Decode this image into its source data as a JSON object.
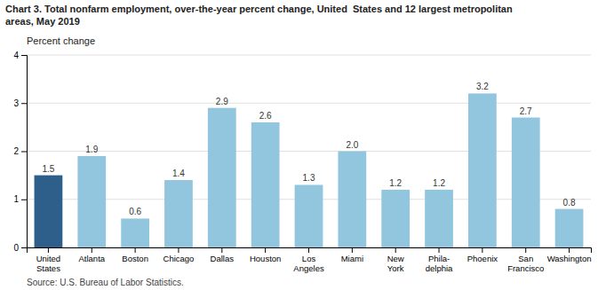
{
  "chart_data": {
    "type": "bar",
    "title": "Chart 3. Total nonfarm employment, over-the-year percent change, United  States and 12 largest metropolitan\nareas, May 2019",
    "ylabel": "Percent change",
    "source": "Source: U.S. Bureau of Labor Statistics.",
    "categories": [
      "United\nStates",
      "Atlanta",
      "Boston",
      "Chicago",
      "Dallas",
      "Houston",
      "Los\nAngeles",
      "Miami",
      "New\nYork",
      "Phila-\ndelphia",
      "Phoenix",
      "San\nFrancisco",
      "Washington"
    ],
    "values": [
      1.5,
      1.9,
      0.6,
      1.4,
      2.9,
      2.6,
      1.3,
      2.0,
      1.2,
      1.2,
      3.2,
      2.7,
      0.8
    ],
    "value_labels": [
      "1.5",
      "1.9",
      "0.6",
      "1.4",
      "2.9",
      "2.6",
      "1.3",
      "2.0",
      "1.2",
      "1.2",
      "3.2",
      "2.7",
      "0.8"
    ],
    "colors": [
      "#2e5f8a",
      "#92c5de",
      "#92c5de",
      "#92c5de",
      "#92c5de",
      "#92c5de",
      "#92c5de",
      "#92c5de",
      "#92c5de",
      "#92c5de",
      "#92c5de",
      "#92c5de",
      "#92c5de"
    ],
    "ylim": [
      0,
      4.0
    ],
    "yticks": [
      0,
      1,
      2,
      3,
      4
    ],
    "grid": true,
    "data_labels": true
  }
}
